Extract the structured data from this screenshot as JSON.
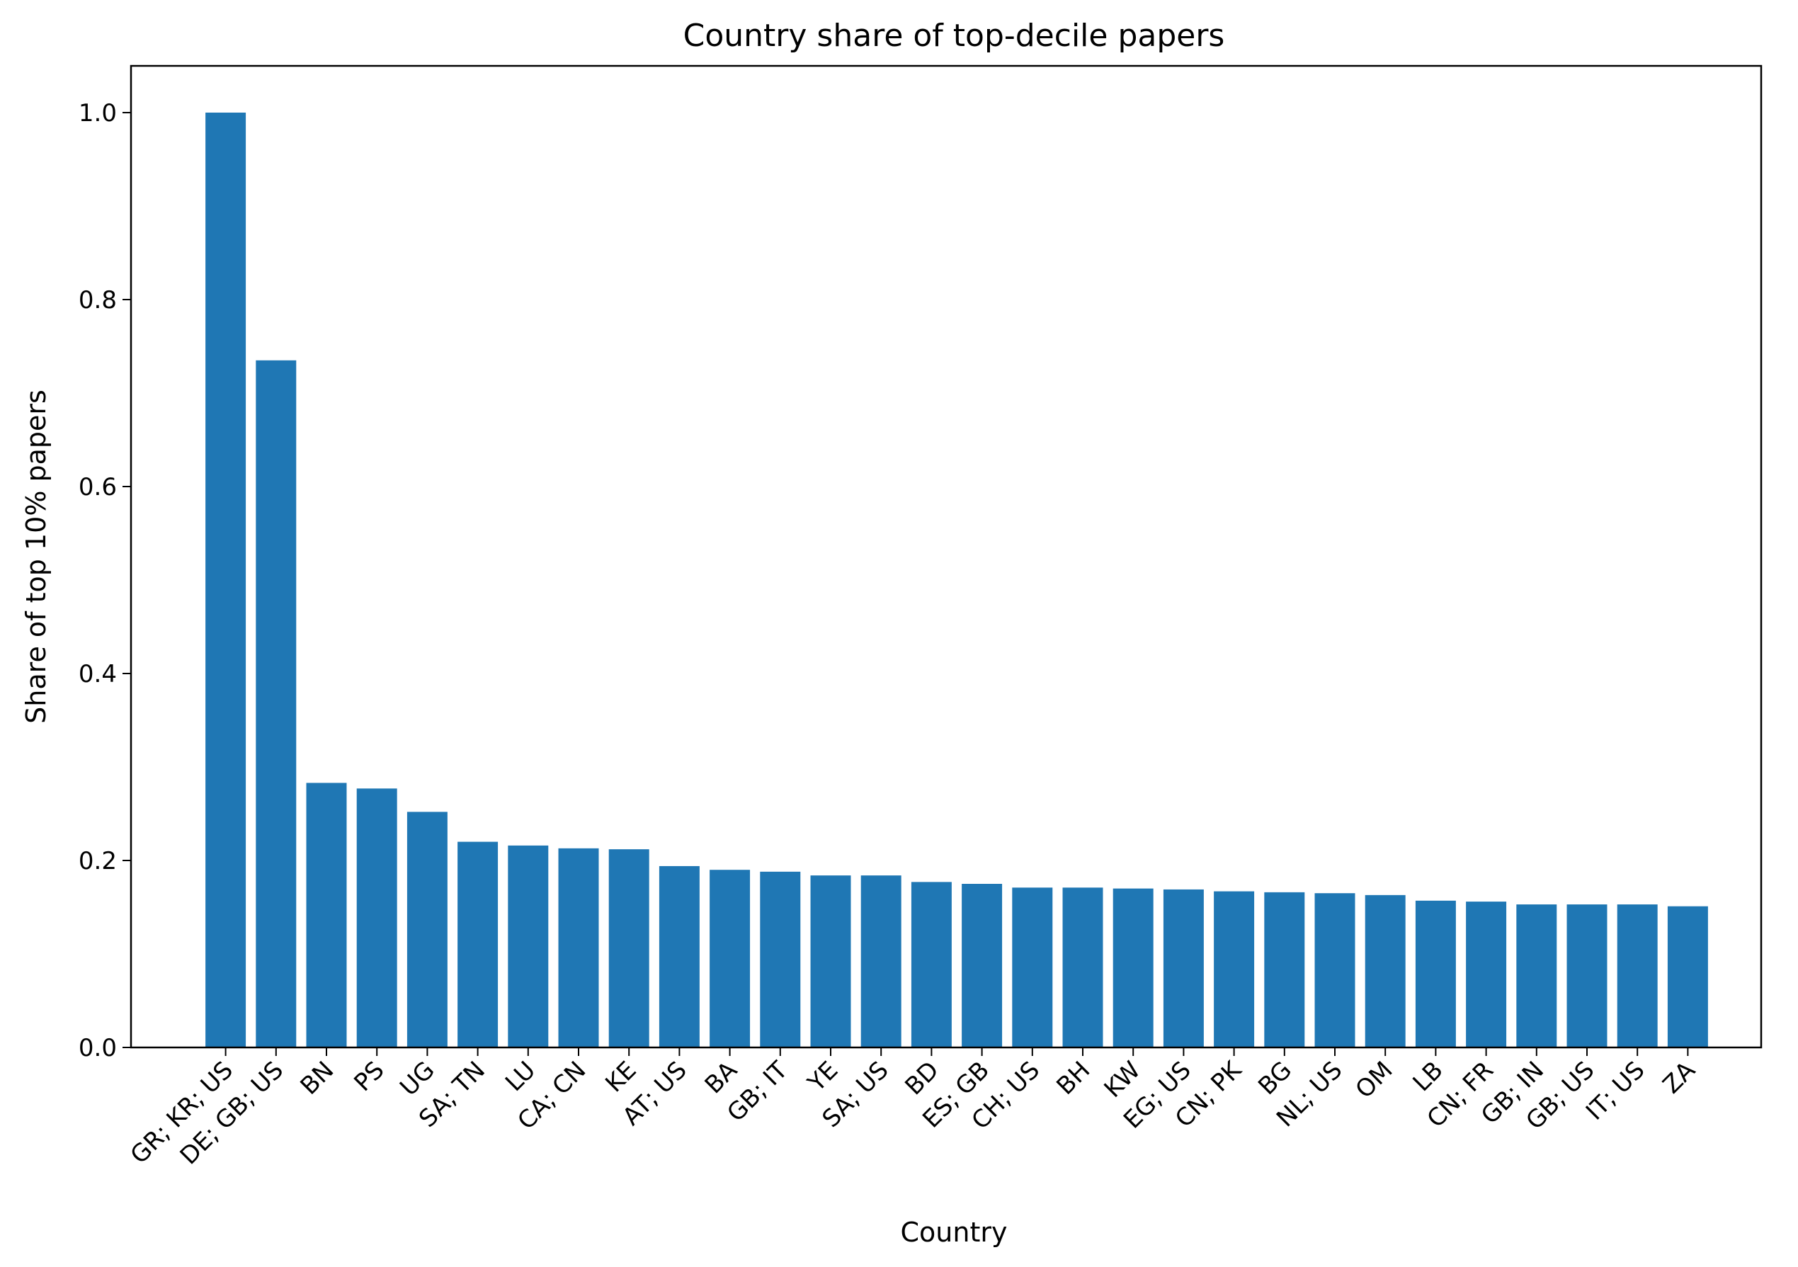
{
  "colors": {
    "bar": "#1f77b4",
    "axis": "#000000",
    "background": "#ffffff"
  },
  "chart_data": {
    "type": "bar",
    "title": "Country share of top-decile papers",
    "xlabel": "Country",
    "ylabel": "Share of top 10% papers",
    "ylim": [
      0,
      1.05
    ],
    "yticks": [
      0.0,
      0.2,
      0.4,
      0.6,
      0.8,
      1.0
    ],
    "ytick_labels": [
      "0.0",
      "0.2",
      "0.4",
      "0.6",
      "0.8",
      "1.0"
    ],
    "grid": false,
    "legend": "none",
    "categories": [
      "GR; KR; US",
      "DE; GB; US",
      "BN",
      "PS",
      "UG",
      "SA; TN",
      "LU",
      "CA; CN",
      "KE",
      "AT; US",
      "BA",
      "GB; IT",
      "YE",
      "SA; US",
      "BD",
      "ES; GB",
      "CH; US",
      "BH",
      "KW",
      "EG; US",
      "CN; PK",
      "BG",
      "NL; US",
      "OM",
      "LB",
      "CN; FR",
      "GB; IN",
      "GB; US",
      "IT; US",
      "ZA"
    ],
    "values": [
      1.0,
      0.735,
      0.283,
      0.277,
      0.252,
      0.22,
      0.216,
      0.213,
      0.212,
      0.194,
      0.19,
      0.188,
      0.184,
      0.184,
      0.177,
      0.175,
      0.171,
      0.171,
      0.17,
      0.169,
      0.167,
      0.166,
      0.165,
      0.163,
      0.157,
      0.156,
      0.153,
      0.153,
      0.153,
      0.151
    ]
  }
}
